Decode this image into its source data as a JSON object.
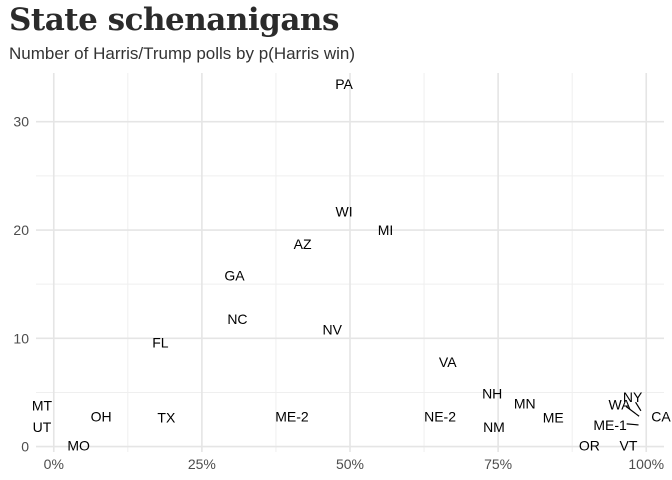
{
  "chart_data": {
    "type": "scatter",
    "title": "State schenanigans",
    "subtitle": "Number of Harris/Trump polls by p(Harris win)",
    "xlabel": "",
    "ylabel": "",
    "xlim": [
      -0.03,
      1.03
    ],
    "ylim": [
      -0.5,
      34.5
    ],
    "x_ticks": [
      {
        "value": 0,
        "label": "0%"
      },
      {
        "value": 0.25,
        "label": "25%"
      },
      {
        "value": 0.5,
        "label": "50%"
      },
      {
        "value": 0.75,
        "label": "75%"
      },
      {
        "value": 1.0,
        "label": "100%"
      }
    ],
    "y_ticks": [
      {
        "value": 0,
        "label": "0"
      },
      {
        "value": 10,
        "label": "10"
      },
      {
        "value": 20,
        "label": "20"
      },
      {
        "value": 30,
        "label": "30"
      }
    ],
    "grid": true,
    "grid_color": "#e5e5e5",
    "grid_minor_color": "#efefef",
    "label_color": "#000000",
    "points": [
      {
        "label": "PA",
        "x": 0.49,
        "y": 33.5
      },
      {
        "label": "WI",
        "x": 0.49,
        "y": 21.7
      },
      {
        "label": "MI",
        "x": 0.56,
        "y": 20.0
      },
      {
        "label": "AZ",
        "x": 0.42,
        "y": 18.7
      },
      {
        "label": "GA",
        "x": 0.305,
        "y": 15.8
      },
      {
        "label": "NC",
        "x": 0.31,
        "y": 11.8
      },
      {
        "label": "NV",
        "x": 0.47,
        "y": 10.8
      },
      {
        "label": "FL",
        "x": 0.18,
        "y": 9.6
      },
      {
        "label": "VA",
        "x": 0.665,
        "y": 7.8
      },
      {
        "label": "NH",
        "x": 0.74,
        "y": 4.9
      },
      {
        "label": "MN",
        "x": 0.795,
        "y": 4.0
      },
      {
        "label": "ME",
        "x": 0.843,
        "y": 2.7
      },
      {
        "label": "NM",
        "x": 0.743,
        "y": 1.8
      },
      {
        "label": "NE-2",
        "x": 0.652,
        "y": 2.8
      },
      {
        "label": "ME-2",
        "x": 0.402,
        "y": 2.8
      },
      {
        "label": "TX",
        "x": 0.19,
        "y": 2.7
      },
      {
        "label": "OH",
        "x": 0.08,
        "y": 2.8
      },
      {
        "label": "MT",
        "x": -0.02,
        "y": 3.8
      },
      {
        "label": "UT",
        "x": -0.02,
        "y": 1.8
      },
      {
        "label": "MO",
        "x": 0.042,
        "y": 0.1
      },
      {
        "label": "WA",
        "x": 0.955,
        "y": 3.9
      },
      {
        "label": "NY",
        "x": 0.977,
        "y": 4.6
      },
      {
        "label": "CA",
        "x": 1.025,
        "y": 2.8
      },
      {
        "label": "ME-1",
        "x": 0.939,
        "y": 2.0
      },
      {
        "label": "OR",
        "x": 0.904,
        "y": 0.1
      },
      {
        "label": "VT",
        "x": 0.97,
        "y": 0.1
      }
    ],
    "leader_lines": [
      {
        "label": "WA",
        "x1": 0.966,
        "y1": 3.7,
        "x2": 0.988,
        "y2": 2.8
      },
      {
        "label": "NY",
        "x1": 0.982,
        "y1": 4.1,
        "x2": 0.991,
        "y2": 3.3
      },
      {
        "label": "ME-1",
        "x1": 0.967,
        "y1": 2.1,
        "x2": 0.987,
        "y2": 2.0
      }
    ]
  }
}
